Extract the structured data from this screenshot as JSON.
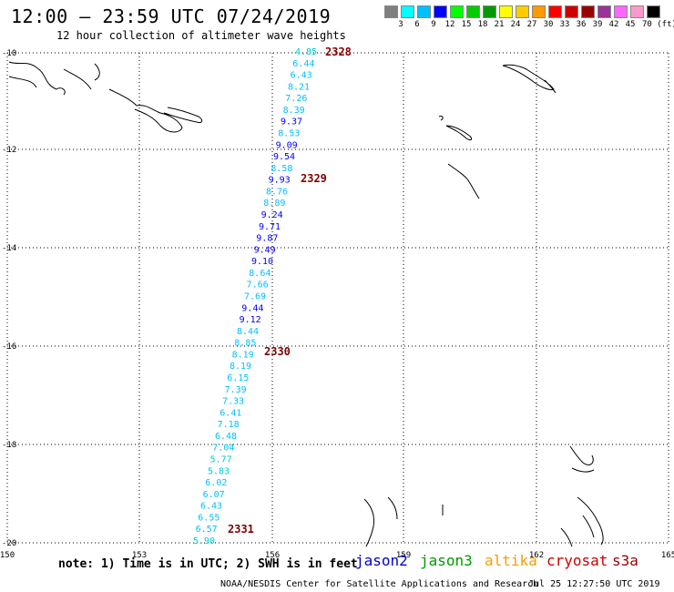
{
  "header": {
    "title": "12:00 – 23:59 UTC 07/24/2019",
    "subtitle": "12 hour collection of altimeter wave heights"
  },
  "scale": {
    "colors": [
      "#7f7f7f",
      "#00ffff",
      "#00bfff",
      "#0000ff",
      "#00ff00",
      "#00cc00",
      "#009900",
      "#ffff00",
      "#ffcc00",
      "#ff9900",
      "#ff0000",
      "#cc0000",
      "#990000",
      "#993399",
      "#ff66ff",
      "#ff99cc",
      "#000000"
    ],
    "ticks": [
      "3",
      "6",
      "9",
      "12",
      "15",
      "18",
      "21",
      "24",
      "27",
      "30",
      "33",
      "36",
      "39",
      "42",
      "45",
      "70 (ft)"
    ]
  },
  "axes": {
    "lat_labels": [
      "-10",
      "-12",
      "-14",
      "-16",
      "-18",
      "-20"
    ],
    "lon_labels": [
      "150",
      "153",
      "156",
      "159",
      "162",
      "165"
    ]
  },
  "track": {
    "values": [
      "4.85",
      "6.44",
      "6.43",
      "8.21",
      "7.26",
      "8.39",
      "9.37",
      "8.53",
      "9.09",
      "9.54",
      "8.58",
      "9.93",
      "8.76",
      "8.89",
      "9.24",
      "9.71",
      "9.87",
      "9.49",
      "9.10",
      "8.64",
      "7.66",
      "7.69",
      "9.44",
      "9.12",
      "8.44",
      "8.85",
      "8.19",
      "8.19",
      "6.15",
      "7.39",
      "7.33",
      "6.41",
      "7.18",
      "6.48",
      "7.04",
      "5.77",
      "5.83",
      "6.02",
      "6.07",
      "6.43",
      "6.55",
      "6.57",
      "5.90"
    ],
    "time_labels": [
      "2328",
      "2329",
      "2330",
      "2331"
    ]
  },
  "footer": {
    "note": "note: 1) Time is in UTC; 2) SWH is in feet",
    "satellites": [
      {
        "name": "jason2",
        "color": "#0000cc"
      },
      {
        "name": "jason3",
        "color": "#009900"
      },
      {
        "name": "altika",
        "color": "#ff9900"
      },
      {
        "name": "cryosat",
        "color": "#cc0000"
      },
      {
        "name": "s3a",
        "color": "#990000"
      }
    ],
    "org": "NOAA/NESDIS Center for Satellite Applications and Research",
    "timestamp": "Jul 25 12:27:50 UTC 2019"
  }
}
